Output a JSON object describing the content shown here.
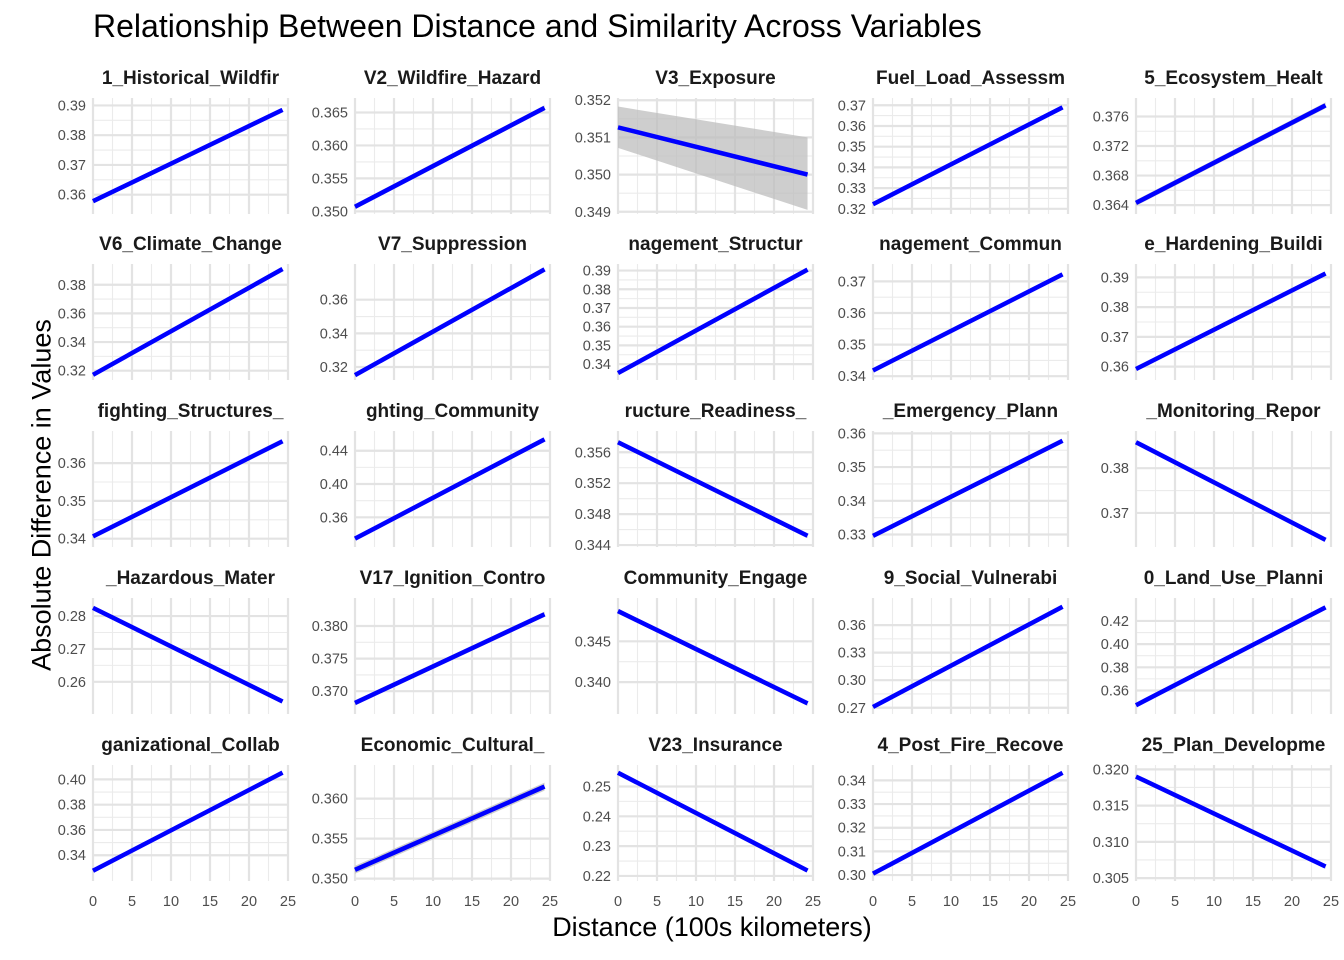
{
  "chart_data": {
    "type": "line",
    "title": "Relationship Between Distance and Similarity Across Variables",
    "xlabel": "Distance (100s kilometers)",
    "ylabel": "Absolute Difference in Values",
    "xlim": [
      0,
      25
    ],
    "x_ticks": [
      "0",
      "5",
      "10",
      "15",
      "20",
      "25"
    ],
    "grid": true,
    "line_color": "#0000ff",
    "ribbon_color": "#bebebe",
    "panels": [
      {
        "strip": "1_Historical_Wildfir",
        "ylim": [
          0.3535,
          0.3925
        ],
        "yticks": [
          0.36,
          0.37,
          0.38,
          0.39
        ],
        "ytick_labels": [
          "0.36",
          "0.37",
          "0.38",
          "0.39"
        ],
        "x": [
          0,
          24.3
        ],
        "fit": [
          0.3578,
          0.3885
        ],
        "band": 0
      },
      {
        "strip": "V2_Wildfire_Hazard",
        "ylim": [
          0.3496,
          0.3672
        ],
        "yticks": [
          0.35,
          0.355,
          0.36,
          0.365
        ],
        "ytick_labels": [
          "0.350",
          "0.355",
          "0.360",
          "0.365"
        ],
        "x": [
          0,
          24.3
        ],
        "fit": [
          0.3507,
          0.3657
        ],
        "band": 0.0004
      },
      {
        "strip": "V3_Exposure",
        "ylim": [
          0.34894,
          0.35206
        ],
        "yticks": [
          0.349,
          0.35,
          0.351,
          0.352
        ],
        "ytick_labels": [
          "0.349",
          "0.350",
          "0.351",
          "0.352"
        ],
        "x": [
          0,
          24.3
        ],
        "fit": [
          0.35127,
          0.35
        ],
        "band_lo": [
          0.35072,
          0.34905
        ],
        "band_hi": [
          0.35183,
          0.351
        ]
      },
      {
        "strip": "Fuel_Load_Assessm",
        "ylim": [
          0.3175,
          0.3735
        ],
        "yticks": [
          0.32,
          0.33,
          0.34,
          0.35,
          0.36,
          0.37
        ],
        "ytick_labels": [
          "0.32",
          "0.33",
          "0.34",
          "0.35",
          "0.36",
          "0.37"
        ],
        "x": [
          0,
          24.3
        ],
        "fit": [
          0.3222,
          0.369
        ],
        "band": 0
      },
      {
        "strip": "5_Ecosystem_Healt",
        "ylim": [
          0.3628,
          0.3785
        ],
        "yticks": [
          0.364,
          0.368,
          0.372,
          0.376
        ],
        "ytick_labels": [
          "0.364",
          "0.368",
          "0.372",
          "0.376"
        ],
        "x": [
          0,
          24.3
        ],
        "fit": [
          0.3643,
          0.3775
        ],
        "band": 0.0004
      },
      {
        "strip": "V6_Climate_Change",
        "ylim": [
          0.3135,
          0.3945
        ],
        "yticks": [
          0.32,
          0.34,
          0.36,
          0.38
        ],
        "ytick_labels": [
          "0.32",
          "0.34",
          "0.36",
          "0.38"
        ],
        "x": [
          0,
          24.3
        ],
        "fit": [
          0.3171,
          0.391
        ],
        "band": 0
      },
      {
        "strip": "V7_Suppression",
        "ylim": [
          0.3123,
          0.3812
        ],
        "yticks": [
          0.32,
          0.34,
          0.36
        ],
        "ytick_labels": [
          "0.32",
          "0.34",
          "0.36"
        ],
        "x": [
          0,
          24.3
        ],
        "fit": [
          0.3152,
          0.378
        ],
        "band": 0
      },
      {
        "strip": "nagement_Structur",
        "ylim": [
          0.3315,
          0.3935
        ],
        "yticks": [
          0.34,
          0.35,
          0.36,
          0.37,
          0.38,
          0.39
        ],
        "ytick_labels": [
          "0.34",
          "0.35",
          "0.36",
          "0.37",
          "0.38",
          "0.39"
        ],
        "x": [
          0,
          24.3
        ],
        "fit": [
          0.3352,
          0.3905
        ],
        "band": 0
      },
      {
        "strip": "nagement_Commun",
        "ylim": [
          0.3388,
          0.3755
        ],
        "yticks": [
          0.34,
          0.35,
          0.36,
          0.37
        ],
        "ytick_labels": [
          "0.34",
          "0.35",
          "0.36",
          "0.37"
        ],
        "x": [
          0,
          24.3
        ],
        "fit": [
          0.3418,
          0.3722
        ],
        "band": 0
      },
      {
        "strip": "e_Hardening_Buildi",
        "ylim": [
          0.3555,
          0.3945
        ],
        "yticks": [
          0.36,
          0.37,
          0.38,
          0.39
        ],
        "ytick_labels": [
          "0.36",
          "0.37",
          "0.38",
          "0.39"
        ],
        "x": [
          0,
          24.3
        ],
        "fit": [
          0.3592,
          0.3913
        ],
        "band": 0
      },
      {
        "strip": "fighting_Structures_",
        "ylim": [
          0.3378,
          0.3685
        ],
        "yticks": [
          0.34,
          0.35,
          0.36
        ],
        "ytick_labels": [
          "0.34",
          "0.35",
          "0.36"
        ],
        "x": [
          0,
          24.3
        ],
        "fit": [
          0.3406,
          0.3658
        ],
        "band": 0
      },
      {
        "strip": "ghting_Community",
        "ylim": [
          0.3243,
          0.4637
        ],
        "yticks": [
          0.36,
          0.4,
          0.44
        ],
        "ytick_labels": [
          "0.36",
          "0.40",
          "0.44"
        ],
        "x": [
          0,
          24.3
        ],
        "fit": [
          0.3343,
          0.4537
        ],
        "band": 0
      },
      {
        "strip": "ructure_Readiness_",
        "ylim": [
          0.34375,
          0.35875
        ],
        "yticks": [
          0.344,
          0.348,
          0.352,
          0.356
        ],
        "ytick_labels": [
          "0.344",
          "0.348",
          "0.352",
          "0.356"
        ],
        "x": [
          0,
          24.3
        ],
        "fit": [
          0.3573,
          0.3452
        ],
        "band": 0.0003
      },
      {
        "strip": "_Emergency_Plann",
        "ylim": [
          0.3263,
          0.3607
        ],
        "yticks": [
          0.33,
          0.34,
          0.35,
          0.36
        ],
        "ytick_labels": [
          "0.33",
          "0.34",
          "0.35",
          "0.36"
        ],
        "x": [
          0,
          24.3
        ],
        "fit": [
          0.3296,
          0.3578
        ],
        "band": 0
      },
      {
        "strip": "_Monitoring_Repor",
        "ylim": [
          0.3624,
          0.3883
        ],
        "yticks": [
          0.37,
          0.38
        ],
        "ytick_labels": [
          "0.37",
          "0.38"
        ],
        "x": [
          0,
          24.3
        ],
        "fit": [
          0.3858,
          0.364
        ],
        "band": 0
      },
      {
        "strip": "_Hazardous_Mater",
        "ylim": [
          0.2502,
          0.2855
        ],
        "yticks": [
          0.26,
          0.27,
          0.28
        ],
        "ytick_labels": [
          "0.26",
          "0.27",
          "0.28"
        ],
        "x": [
          0,
          24.3
        ],
        "fit": [
          0.2825,
          0.254
        ],
        "band": 0
      },
      {
        "strip": "V17_Ignition_Contro",
        "ylim": [
          0.3665,
          0.3843
        ],
        "yticks": [
          0.37,
          0.375,
          0.38
        ],
        "ytick_labels": [
          "0.370",
          "0.375",
          "0.380"
        ],
        "x": [
          0,
          24.3
        ],
        "fit": [
          0.3682,
          0.3818
        ],
        "band": 0.0004
      },
      {
        "strip": "Community_Engage",
        "ylim": [
          0.3361,
          0.3503
        ],
        "yticks": [
          0.34,
          0.345
        ],
        "ytick_labels": [
          "0.340",
          "0.345"
        ],
        "x": [
          0,
          24.3
        ],
        "fit": [
          0.3487,
          0.3374
        ],
        "band": 0.0003
      },
      {
        "strip": "9_Social_Vulnerabi",
        "ylim": [
          0.2632,
          0.3895
        ],
        "yticks": [
          0.27,
          0.3,
          0.33,
          0.36
        ],
        "ytick_labels": [
          "0.27",
          "0.30",
          "0.33",
          "0.36"
        ],
        "x": [
          0,
          24.3
        ],
        "fit": [
          0.2709,
          0.38
        ],
        "band": 0
      },
      {
        "strip": "0_Land_Use_Planni",
        "ylim": [
          0.3397,
          0.4398
        ],
        "yticks": [
          0.36,
          0.38,
          0.4,
          0.42
        ],
        "ytick_labels": [
          "0.36",
          "0.38",
          "0.40",
          "0.42"
        ],
        "x": [
          0,
          24.3
        ],
        "fit": [
          0.3473,
          0.4317
        ],
        "band": 0
      },
      {
        "strip": "ganizational_Collab",
        "ylim": [
          0.3196,
          0.4114
        ],
        "yticks": [
          0.34,
          0.36,
          0.38,
          0.4
        ],
        "ytick_labels": [
          "0.34",
          "0.36",
          "0.38",
          "0.40"
        ],
        "x": [
          0,
          24.3
        ],
        "fit": [
          0.3277,
          0.4054
        ],
        "band": 0
      },
      {
        "strip": "Economic_Cultural_",
        "ylim": [
          0.3497,
          0.3642
        ],
        "yticks": [
          0.35,
          0.355,
          0.36
        ],
        "ytick_labels": [
          "0.350",
          "0.355",
          "0.360"
        ],
        "x": [
          0,
          24.3
        ],
        "fit": [
          0.3511,
          0.3615
        ],
        "band": 0.0005
      },
      {
        "strip": "V23_Insurance",
        "ylim": [
          0.2183,
          0.2572
        ],
        "yticks": [
          0.22,
          0.23,
          0.24,
          0.25
        ],
        "ytick_labels": [
          "0.22",
          "0.23",
          "0.24",
          "0.25"
        ],
        "x": [
          0,
          24.3
        ],
        "fit": [
          0.2546,
          0.2218
        ],
        "band": 0
      },
      {
        "strip": "4_Post_Fire_Recove",
        "ylim": [
          0.2975,
          0.3465
        ],
        "yticks": [
          0.3,
          0.31,
          0.32,
          0.33,
          0.34
        ],
        "ytick_labels": [
          "0.30",
          "0.31",
          "0.32",
          "0.33",
          "0.34"
        ],
        "x": [
          0,
          24.3
        ],
        "fit": [
          0.3006,
          0.3432
        ],
        "band": 0
      },
      {
        "strip": "25_Plan_Developme",
        "ylim": [
          0.3046,
          0.3206
        ],
        "yticks": [
          0.305,
          0.31,
          0.315,
          0.32
        ],
        "ytick_labels": [
          "0.305",
          "0.310",
          "0.315",
          "0.320"
        ],
        "x": [
          0,
          24.3
        ],
        "fit": [
          0.319,
          0.3066
        ],
        "band": 0.0003
      }
    ]
  }
}
